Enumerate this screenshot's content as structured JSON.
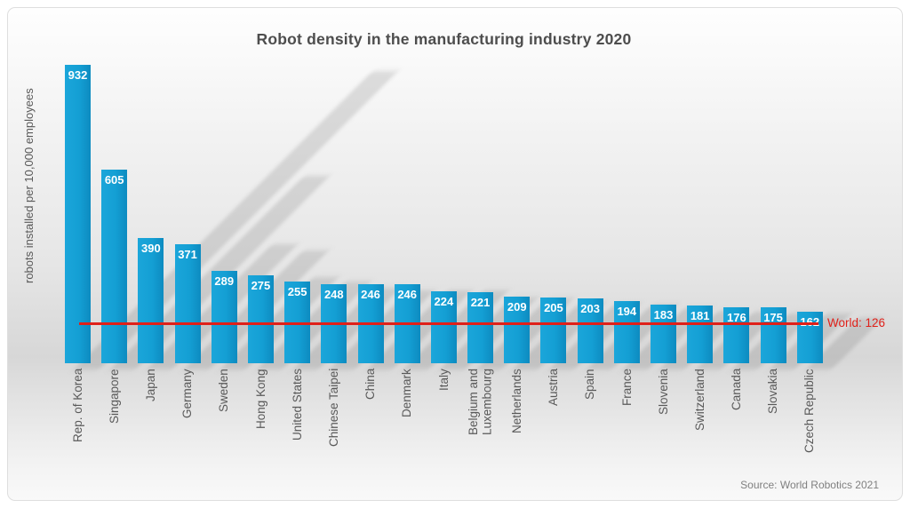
{
  "title": "Robot density in the manufacturing industry 2020",
  "y_axis_label": "robots installed per 10,000 employees",
  "source": "Source: World Robotics 2021",
  "world_line": {
    "label": "World: 126",
    "value": 126
  },
  "colors": {
    "bar": "#149fd4",
    "bar_edge_dark": "#0d8bc0",
    "world_line": "#e02019",
    "title_text": "#4d4d4d",
    "axis_text": "#595959",
    "value_text": "#ffffff",
    "source_text": "#808080",
    "background_top": "#fefefe",
    "background_baseline": "#d7d7d7"
  },
  "chart_data": {
    "type": "bar",
    "title": "Robot density in the manufacturing industry 2020",
    "xlabel": "",
    "ylabel": "robots installed per 10,000 employees",
    "ylim": [
      0,
      950
    ],
    "grid": false,
    "legend": false,
    "bar_color": "#149fd4",
    "value_labels_inside_bars": true,
    "categories": [
      "Rep. of Korea",
      "Singapore",
      "Japan",
      "Germany",
      "Sweden",
      "Hong Kong",
      "United States",
      "Chinese Taipei",
      "China",
      "Denmark",
      "Italy",
      "Belgium and\nLuxembourg",
      "Netherlands",
      "Austria",
      "Spain",
      "France",
      "Slovenia",
      "Switzerland",
      "Canada",
      "Slovakia",
      "Czech Republic"
    ],
    "values": [
      932,
      605,
      390,
      371,
      289,
      275,
      255,
      248,
      246,
      246,
      224,
      221,
      209,
      205,
      203,
      194,
      183,
      181,
      176,
      175,
      162
    ],
    "annotation": {
      "type": "hline",
      "value": 126,
      "label": "World: 126",
      "color": "#e02019",
      "position": "right"
    }
  }
}
